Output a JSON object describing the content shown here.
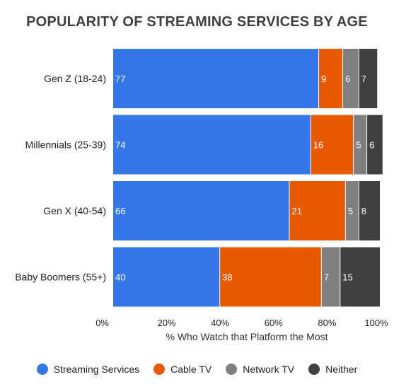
{
  "chart_data": {
    "type": "bar",
    "orientation": "horizontal",
    "stacked": true,
    "title": "POPULARITY OF STREAMING SERVICES BY AGE",
    "xlabel": "% Who Watch that Platform the Most",
    "ylabel": "",
    "xlim": [
      0,
      100
    ],
    "xticks": [
      "0%",
      "20%",
      "40%",
      "60%",
      "80%",
      "100%"
    ],
    "xtick_values": [
      0,
      20,
      40,
      60,
      80,
      100
    ],
    "grid": false,
    "legend_position": "bottom",
    "categories": [
      "Gen Z (18-24)",
      "Millennials (25-39)",
      "Gen X (40-54)",
      "Baby Boomers (55+)"
    ],
    "series": [
      {
        "name": "Streaming Services",
        "color": "#3377e8",
        "values": [
          77,
          74,
          66,
          40
        ]
      },
      {
        "name": "Cable TV",
        "color": "#e85a00",
        "values": [
          9,
          16,
          21,
          38
        ]
      },
      {
        "name": "Network TV",
        "color": "#7f7f7f",
        "values": [
          6,
          5,
          5,
          7
        ]
      },
      {
        "name": "Neither",
        "color": "#404040",
        "values": [
          7,
          6,
          8,
          15
        ]
      }
    ]
  }
}
